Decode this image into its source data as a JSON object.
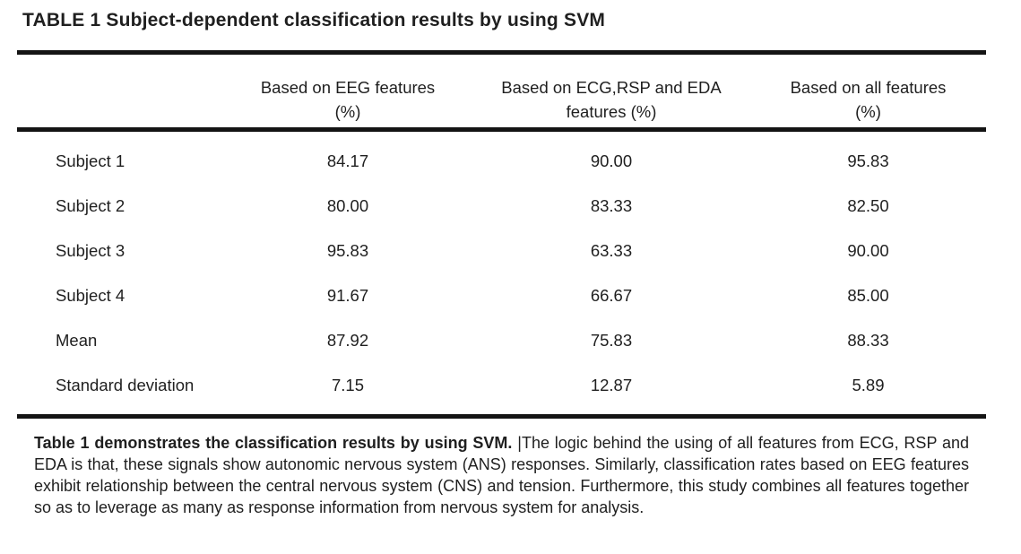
{
  "title": "TABLE 1 Subject-dependent classification results by using SVM",
  "table": {
    "header": [
      {
        "line1": "Based on EEG features",
        "line2": "(%)"
      },
      {
        "line1": "Based on ECG,RSP and EDA",
        "line2": "features (%)"
      },
      {
        "line1": "Based on all features",
        "line2": "(%)"
      }
    ],
    "rows": [
      {
        "label": "Subject 1",
        "values": [
          "84.17",
          "90.00",
          "95.83"
        ]
      },
      {
        "label": "Subject 2",
        "values": [
          "80.00",
          "83.33",
          "82.50"
        ]
      },
      {
        "label": "Subject 3",
        "values": [
          "95.83",
          "63.33",
          "90.00"
        ]
      },
      {
        "label": "Subject 4",
        "values": [
          "91.67",
          "66.67",
          "85.00"
        ]
      },
      {
        "label": "Mean",
        "values": [
          "87.92",
          "75.83",
          "88.33"
        ]
      },
      {
        "label": "Standard deviation",
        "values": [
          "7.15",
          "12.87",
          "5.89"
        ]
      }
    ]
  },
  "caption": {
    "lead": "Table 1 demonstrates the classification results by using SVM.",
    "cursor": "|",
    "body": "The logic behind the using of all features from ECG, RSP and EDA is that, these signals show autonomic nervous system (ANS) responses. Similarly, classification rates based on EEG features exhibit relationship between the central nervous system (CNS) and tension. Furthermore, this study combines all features together so as to leverage as many as response information from nervous system for analysis."
  },
  "colors": {
    "text": "#1f1f1f",
    "rule": "#141414",
    "background": "#ffffff"
  },
  "chart_data": {
    "type": "table",
    "title": "TABLE 1 Subject-dependent classification results by using SVM",
    "columns": [
      "",
      "Based on EEG features (%)",
      "Based on ECG,RSP and EDA features (%)",
      "Based on all features (%)"
    ],
    "rows": [
      [
        "Subject 1",
        84.17,
        90.0,
        95.83
      ],
      [
        "Subject 2",
        80.0,
        83.33,
        82.5
      ],
      [
        "Subject 3",
        95.83,
        63.33,
        90.0
      ],
      [
        "Subject 4",
        91.67,
        66.67,
        85.0
      ],
      [
        "Mean",
        87.92,
        75.83,
        88.33
      ],
      [
        "Standard deviation",
        7.15,
        12.87,
        5.89
      ]
    ]
  }
}
